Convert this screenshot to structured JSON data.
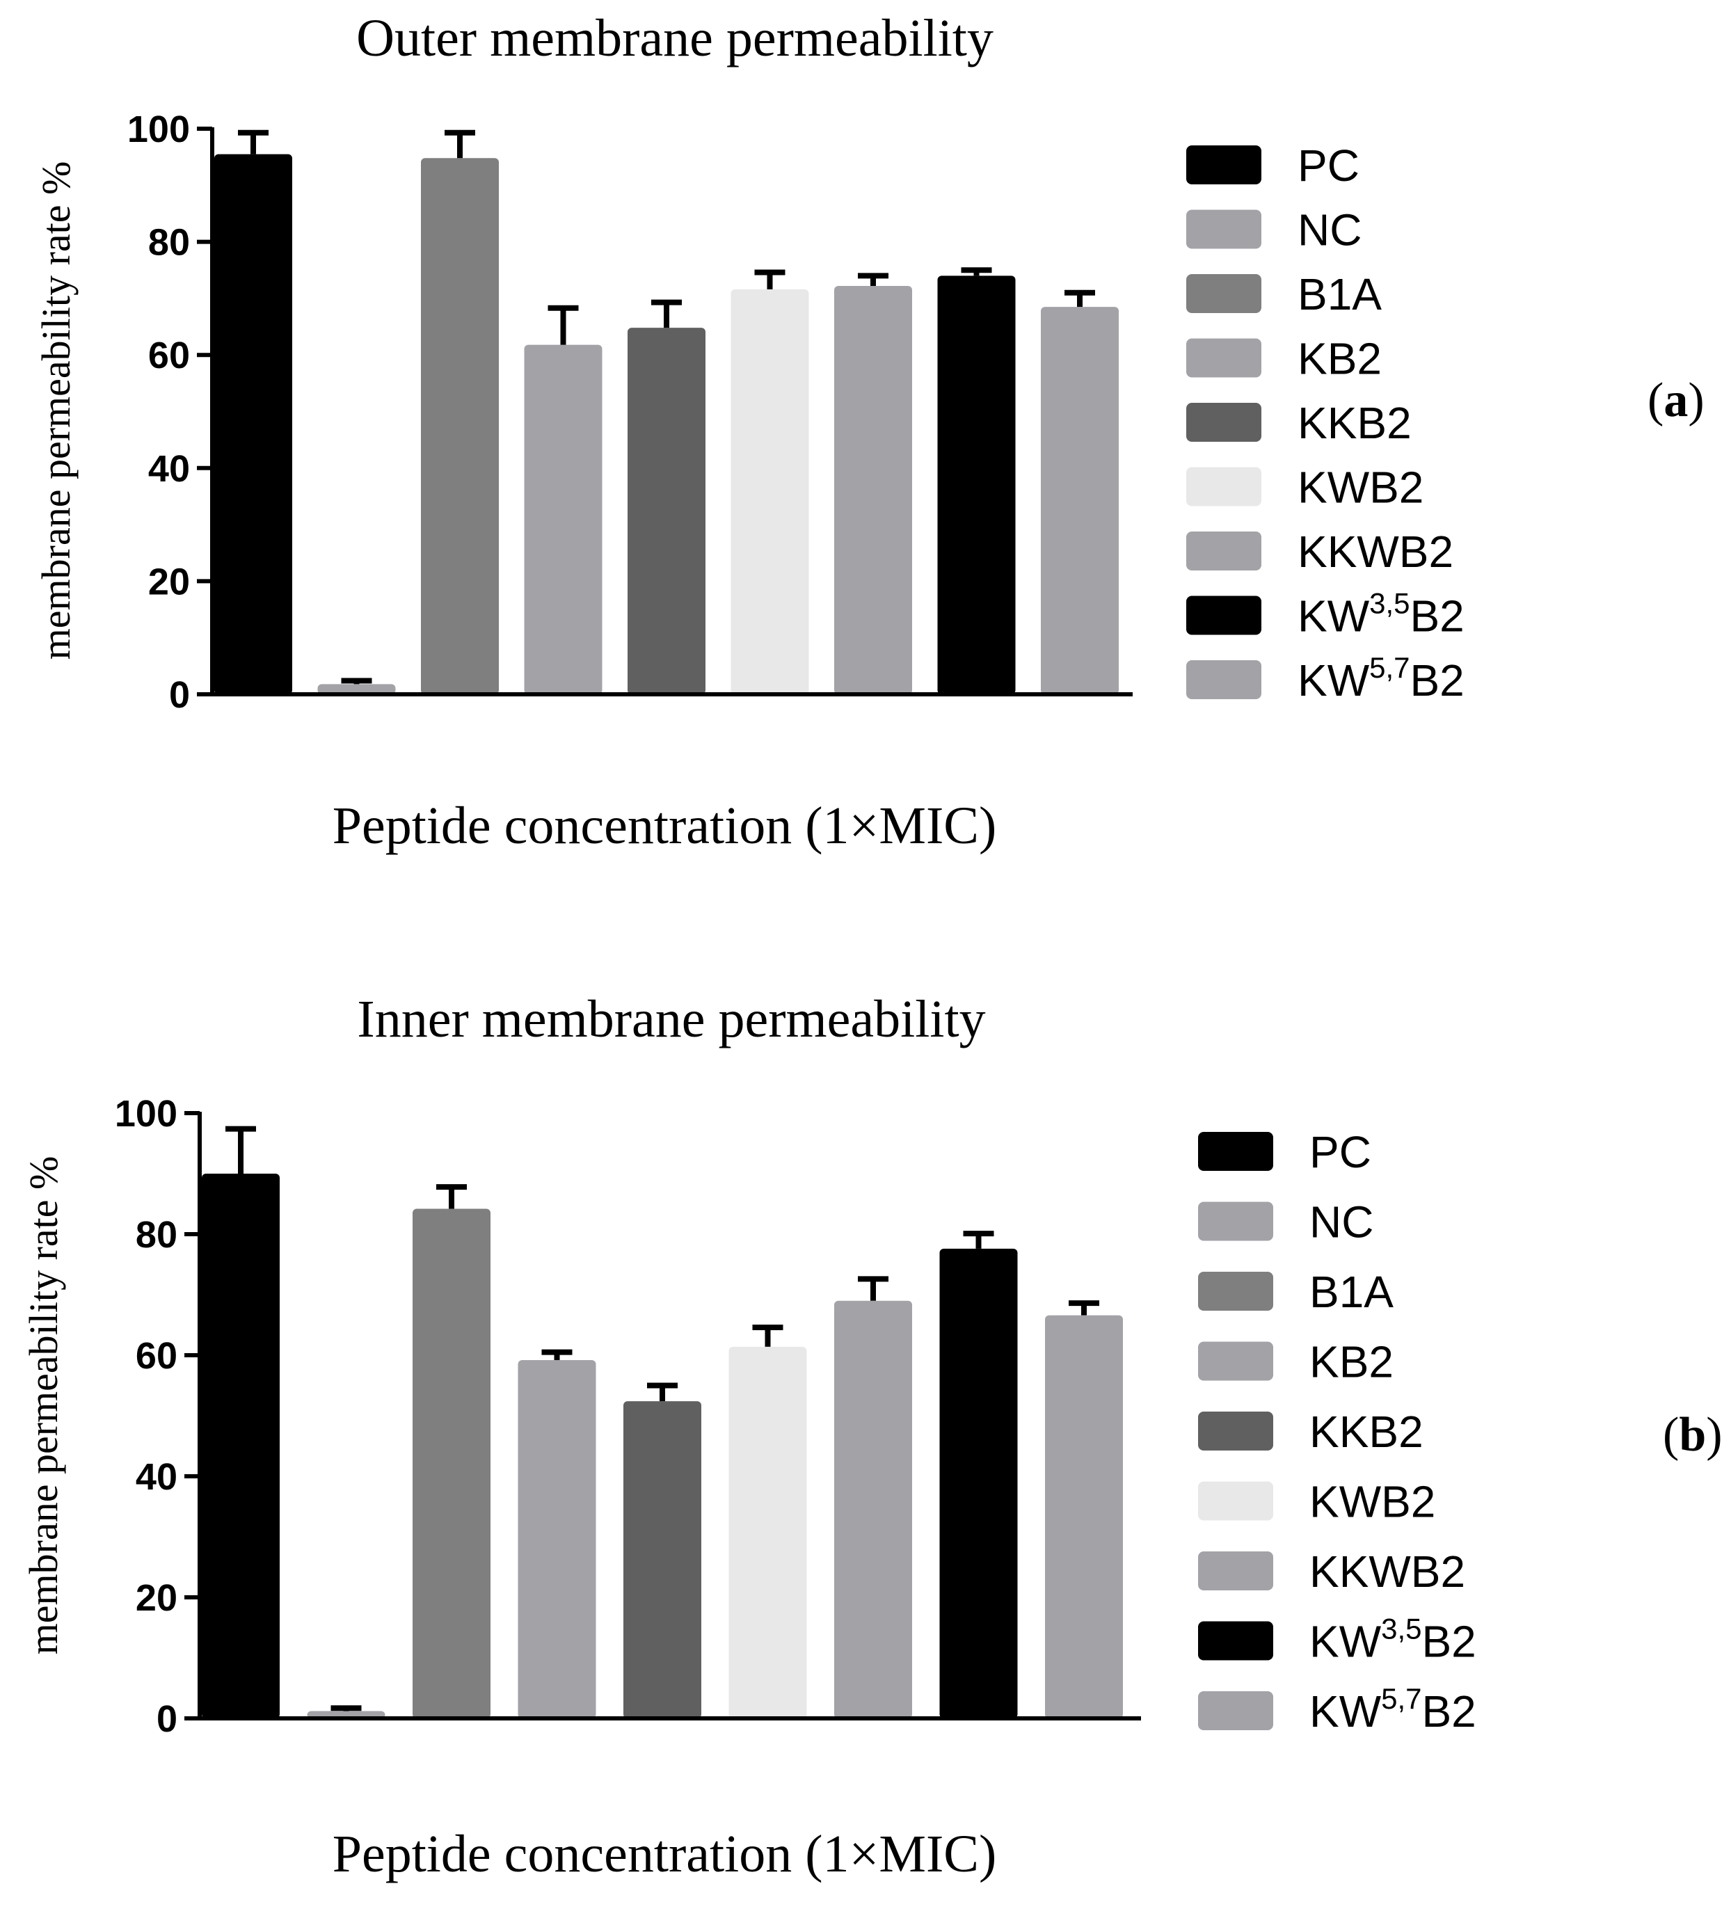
{
  "chart_data": [
    {
      "type": "bar",
      "panel_label": "(a)",
      "panel_letter": "a",
      "title": "Outer membrane permeability",
      "xlabel": "Peptide concentration (1×MIC)",
      "ylabel": "membrane permeability rate %",
      "ylim": [
        0,
        100
      ],
      "yticks": [
        "0",
        "20",
        "40",
        "60",
        "80",
        "100"
      ],
      "legend_position": "right",
      "categories": [
        "PC",
        "NC",
        "B1A",
        "KB2",
        "KKB2",
        "KWB2",
        "KKWB2",
        "KW3,5B2",
        "KW5,7B2"
      ],
      "values": [
        95.5,
        1.8,
        94.8,
        61.8,
        64.8,
        71.6,
        72.2,
        74.0,
        68.5
      ],
      "errors": [
        3.8,
        0.6,
        4.5,
        6.5,
        4.5,
        3.0,
        1.8,
        1.0,
        2.5
      ]
    },
    {
      "type": "bar",
      "panel_label": "(b)",
      "panel_letter": "b",
      "title": "Inner membrane permeability",
      "xlabel": "Peptide concentration (1×MIC)",
      "ylabel": "membrane permeability rate %",
      "ylim": [
        0,
        100
      ],
      "yticks": [
        "0",
        "20",
        "40",
        "60",
        "80",
        "100"
      ],
      "legend_position": "right",
      "categories": [
        "PC",
        "NC",
        "B1A",
        "KB2",
        "KKB2",
        "KWB2",
        "KKWB2",
        "KW3,5B2",
        "KW5,7B2"
      ],
      "values": [
        90.0,
        1.2,
        84.2,
        59.2,
        52.4,
        61.4,
        69.0,
        77.6,
        66.6
      ],
      "errors": [
        7.4,
        0.5,
        3.6,
        1.3,
        2.6,
        3.2,
        3.6,
        2.5,
        2.0
      ]
    }
  ],
  "legend": [
    {
      "text": "PC",
      "sup": "",
      "suffix": "",
      "color": "#000000"
    },
    {
      "text": "NC",
      "sup": "",
      "suffix": "",
      "color": "#a3a2a7"
    },
    {
      "text": "B1A",
      "sup": "",
      "suffix": "",
      "color": "#7f7f7f"
    },
    {
      "text": "KB2",
      "sup": "",
      "suffix": "",
      "color": "#a3a2a7"
    },
    {
      "text": "KKB2",
      "sup": "",
      "suffix": "",
      "color": "#606060"
    },
    {
      "text": "KWB2",
      "sup": "",
      "suffix": "",
      "color": "#e8e8e8"
    },
    {
      "text": "KKWB2",
      "sup": "",
      "suffix": "",
      "color": "#a3a2a7"
    },
    {
      "text": "KW",
      "sup": "3,5",
      "suffix": "B2",
      "color": "#000000"
    },
    {
      "text": "KW",
      "sup": "5,7",
      "suffix": "B2",
      "color": "#a3a2a7"
    }
  ]
}
